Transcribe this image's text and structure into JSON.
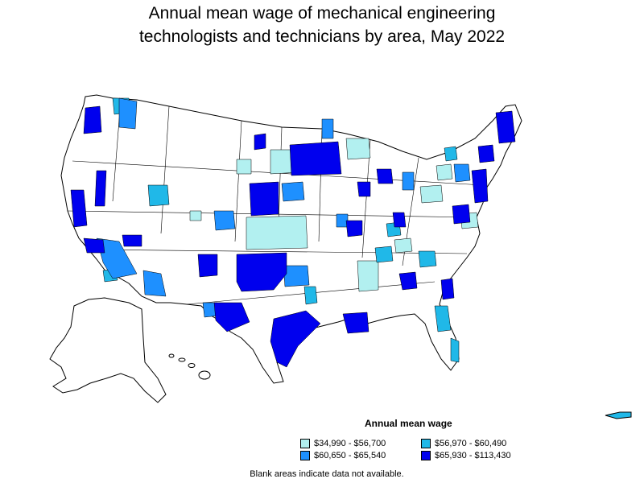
{
  "title_line1": "Annual mean wage of mechanical engineering",
  "title_line2": "technologists and technicians by area, May 2022",
  "legend": {
    "title": "Annual mean wage",
    "items": [
      {
        "label": "$34,990 - $56,700",
        "color": "#b2f0f0"
      },
      {
        "label": "$56,970 - $60,490",
        "color": "#20b8e8"
      },
      {
        "label": "$60,650 - $65,540",
        "color": "#1e90ff"
      },
      {
        "label": "$65,930 - $113,430",
        "color": "#0000ee"
      }
    ]
  },
  "footnote": "Blank areas indicate data not available.",
  "map_colors": {
    "border": "#000000",
    "no_data": "#ffffff"
  }
}
